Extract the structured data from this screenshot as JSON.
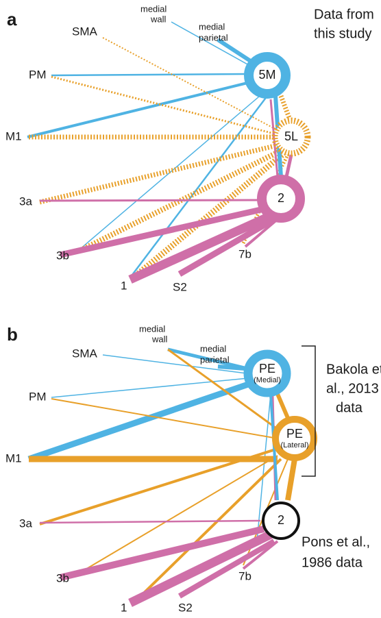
{
  "panel_a": {
    "label": "a",
    "note": [
      "Data from",
      "this study"
    ],
    "regions": {
      "medial_wall": [
        "medial",
        "wall"
      ],
      "medial_parietal": [
        "medial",
        "parietal"
      ],
      "sma": "SMA",
      "pm": "PM",
      "m1": "M1",
      "area_3a": "3a",
      "area_3b": "3b",
      "area_1": "1",
      "s2": "S2",
      "area_7b": "7b"
    },
    "nodes": [
      {
        "name": "5M"
      },
      {
        "name": "5L"
      },
      {
        "name": "2"
      }
    ]
  },
  "panel_b": {
    "label": "b",
    "note_top": [
      "Bakola et",
      "al., 2013",
      "data"
    ],
    "note_bottom": [
      "Pons et al.,",
      "1986 data"
    ],
    "regions": {
      "medial_wall": [
        "medial",
        "wall"
      ],
      "medial_parietal": [
        "medial",
        "parietal"
      ],
      "sma": "SMA",
      "pm": "PM",
      "m1": "M1",
      "area_3a": "3a",
      "area_3b": "3b",
      "area_1": "1",
      "s2": "S2",
      "area_7b": "7b"
    },
    "nodes": [
      {
        "name": "PE",
        "sub": "(Medial)"
      },
      {
        "name": "PE",
        "sub": "(Lateral)"
      },
      {
        "name": "2"
      }
    ]
  }
}
